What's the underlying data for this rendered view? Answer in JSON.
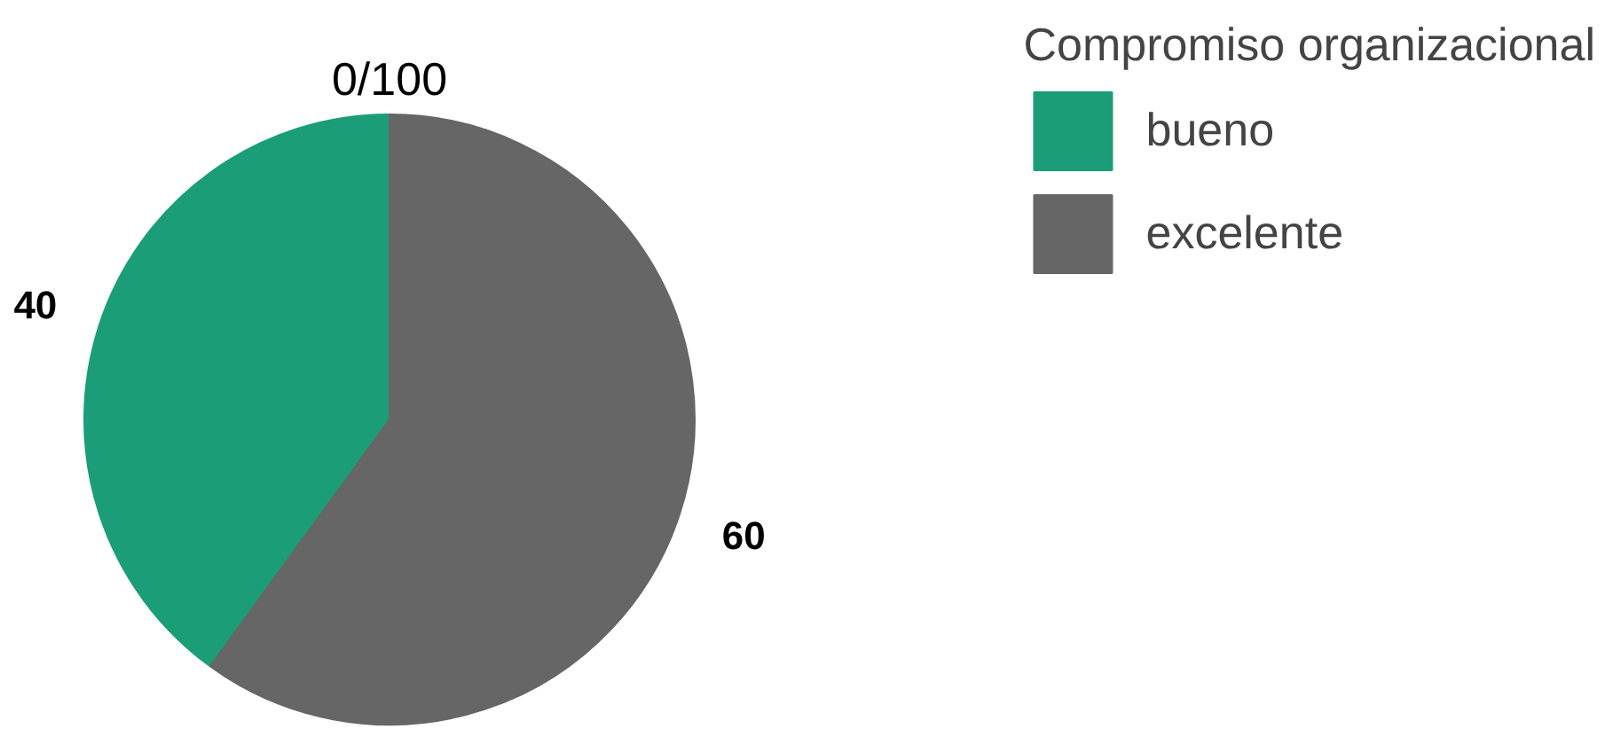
{
  "chart_data": {
    "type": "pie",
    "legend_title": "Compromiso organizacional",
    "categories": [
      "bueno",
      "excelente"
    ],
    "values": [
      40,
      60
    ],
    "colors": [
      "#1b9e77",
      "#666666"
    ],
    "data_labels": true,
    "annotations": [
      "0/100"
    ],
    "legend": "top right"
  }
}
